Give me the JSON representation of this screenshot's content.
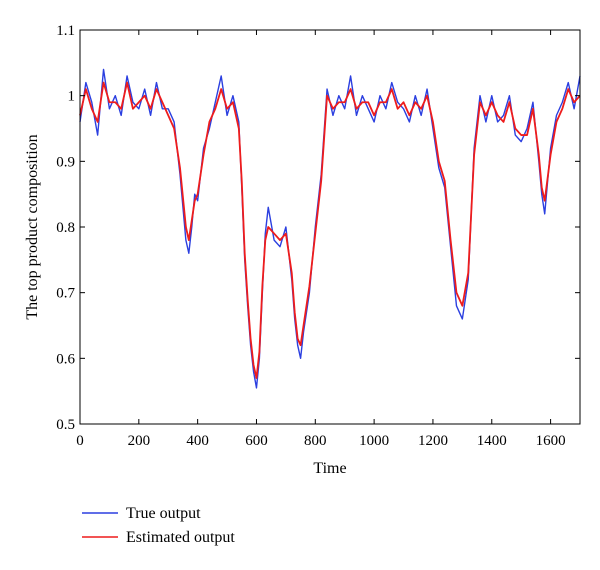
{
  "chart_data": {
    "type": "line",
    "title": "",
    "xlabel": "Time",
    "ylabel": "The top product composition",
    "xlim": [
      0,
      1700
    ],
    "ylim": [
      0.5,
      1.1
    ],
    "xticks": [
      0,
      200,
      400,
      600,
      800,
      1000,
      1200,
      1400,
      1600
    ],
    "yticks": [
      0.5,
      0.6,
      0.7,
      0.8,
      0.9,
      1,
      1.1
    ],
    "xtick_labels": [
      "0",
      "200",
      "400",
      "600",
      "800",
      "1000",
      "1200",
      "1400",
      "1600"
    ],
    "ytick_labels": [
      "0.5",
      "0.6",
      "0.7",
      "0.8",
      "0.9",
      "1",
      "1.1"
    ],
    "grid": false,
    "legend_position": "below-left",
    "series": [
      {
        "name": "True output",
        "color": "#2b3fe0",
        "x": [
          0,
          20,
          40,
          60,
          80,
          100,
          120,
          140,
          160,
          180,
          200,
          220,
          240,
          260,
          280,
          300,
          320,
          340,
          360,
          370,
          380,
          390,
          400,
          420,
          440,
          460,
          480,
          500,
          520,
          540,
          550,
          560,
          570,
          580,
          590,
          600,
          610,
          620,
          630,
          640,
          660,
          680,
          700,
          720,
          730,
          740,
          750,
          760,
          780,
          800,
          820,
          840,
          860,
          880,
          900,
          920,
          940,
          960,
          980,
          1000,
          1020,
          1040,
          1060,
          1080,
          1100,
          1120,
          1140,
          1160,
          1180,
          1200,
          1220,
          1240,
          1260,
          1280,
          1300,
          1320,
          1340,
          1360,
          1380,
          1400,
          1420,
          1440,
          1460,
          1480,
          1500,
          1520,
          1540,
          1560,
          1570,
          1580,
          1600,
          1620,
          1640,
          1660,
          1680,
          1700
        ],
        "values": [
          0.96,
          1.02,
          0.99,
          0.94,
          1.04,
          0.98,
          1.0,
          0.97,
          1.03,
          0.99,
          0.98,
          1.01,
          0.97,
          1.02,
          0.98,
          0.98,
          0.96,
          0.88,
          0.78,
          0.76,
          0.8,
          0.85,
          0.84,
          0.92,
          0.95,
          0.99,
          1.03,
          0.97,
          1.0,
          0.96,
          0.86,
          0.75,
          0.68,
          0.62,
          0.58,
          0.555,
          0.6,
          0.7,
          0.79,
          0.83,
          0.78,
          0.77,
          0.8,
          0.72,
          0.66,
          0.62,
          0.6,
          0.64,
          0.7,
          0.8,
          0.88,
          1.01,
          0.97,
          1.0,
          0.98,
          1.03,
          0.97,
          1.0,
          0.98,
          0.96,
          1.0,
          0.98,
          1.02,
          0.99,
          0.98,
          0.96,
          1.0,
          0.97,
          1.01,
          0.95,
          0.89,
          0.86,
          0.77,
          0.68,
          0.66,
          0.72,
          0.92,
          1.0,
          0.96,
          1.0,
          0.96,
          0.97,
          1.0,
          0.94,
          0.93,
          0.95,
          0.99,
          0.9,
          0.85,
          0.82,
          0.92,
          0.97,
          0.99,
          1.02,
          0.98,
          1.03
        ]
      },
      {
        "name": "Estimated output",
        "color": "#ee1c1c",
        "x": [
          0,
          20,
          40,
          60,
          80,
          100,
          120,
          140,
          160,
          180,
          200,
          220,
          240,
          260,
          280,
          300,
          320,
          340,
          360,
          370,
          380,
          390,
          400,
          420,
          440,
          460,
          480,
          500,
          520,
          540,
          550,
          560,
          570,
          580,
          590,
          600,
          610,
          620,
          630,
          640,
          660,
          680,
          700,
          720,
          730,
          740,
          750,
          760,
          780,
          800,
          820,
          840,
          860,
          880,
          900,
          920,
          940,
          960,
          980,
          1000,
          1020,
          1040,
          1060,
          1080,
          1100,
          1120,
          1140,
          1160,
          1180,
          1200,
          1220,
          1240,
          1260,
          1280,
          1300,
          1320,
          1340,
          1360,
          1380,
          1400,
          1420,
          1440,
          1460,
          1480,
          1500,
          1520,
          1540,
          1560,
          1570,
          1580,
          1600,
          1620,
          1640,
          1660,
          1680,
          1700
        ],
        "values": [
          0.97,
          1.01,
          0.98,
          0.96,
          1.02,
          0.99,
          0.99,
          0.98,
          1.02,
          0.98,
          0.99,
          1.0,
          0.98,
          1.01,
          0.99,
          0.97,
          0.95,
          0.89,
          0.8,
          0.78,
          0.81,
          0.84,
          0.85,
          0.91,
          0.96,
          0.98,
          1.01,
          0.98,
          0.99,
          0.95,
          0.87,
          0.76,
          0.69,
          0.63,
          0.59,
          0.57,
          0.61,
          0.71,
          0.78,
          0.8,
          0.79,
          0.78,
          0.79,
          0.73,
          0.67,
          0.63,
          0.62,
          0.65,
          0.71,
          0.79,
          0.87,
          1.0,
          0.98,
          0.99,
          0.99,
          1.01,
          0.98,
          0.99,
          0.99,
          0.97,
          0.99,
          0.99,
          1.01,
          0.98,
          0.99,
          0.97,
          0.99,
          0.98,
          1.0,
          0.96,
          0.9,
          0.87,
          0.78,
          0.7,
          0.68,
          0.73,
          0.91,
          0.99,
          0.97,
          0.99,
          0.97,
          0.96,
          0.99,
          0.95,
          0.94,
          0.94,
          0.98,
          0.91,
          0.86,
          0.84,
          0.91,
          0.96,
          0.98,
          1.01,
          0.99,
          1.0
        ]
      }
    ]
  }
}
